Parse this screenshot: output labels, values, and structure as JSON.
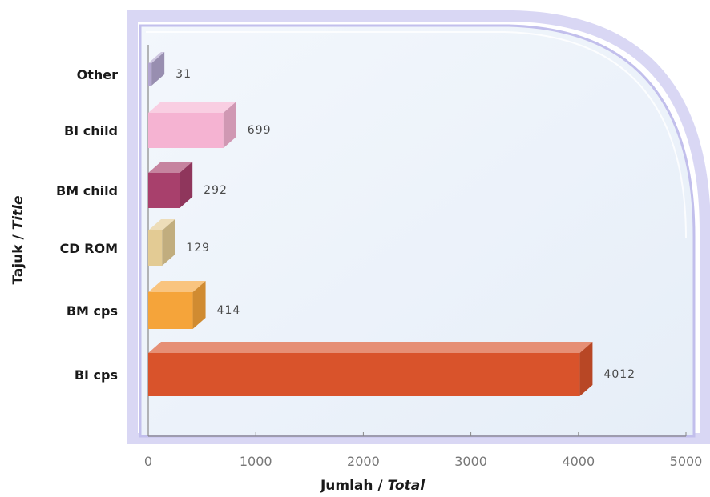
{
  "chart_data": {
    "type": "bar",
    "orientation": "horizontal",
    "categories": [
      "Other",
      "BI child",
      "BM child",
      "CD ROM",
      "BM cps",
      "BI cps"
    ],
    "values": [
      31,
      699,
      292,
      129,
      414,
      4012
    ],
    "bar_colors": [
      "#b3a7cf",
      "#f5b3d2",
      "#a8406c",
      "#e3cb94",
      "#f5a43a",
      "#d9532b"
    ],
    "xlim": [
      0,
      5000
    ],
    "x_ticks": [
      "0",
      "1000",
      "2000",
      "3000",
      "4000",
      "5000"
    ],
    "xlabel": {
      "main": "Jumlah / ",
      "italic": "Total"
    },
    "ylabel": {
      "main": "Tajuk / ",
      "italic": "Title"
    },
    "grid": false,
    "legend": "none"
  },
  "colors": {
    "panel_fill": "#eef4fb",
    "panel_frame": "#c9c6ee"
  }
}
